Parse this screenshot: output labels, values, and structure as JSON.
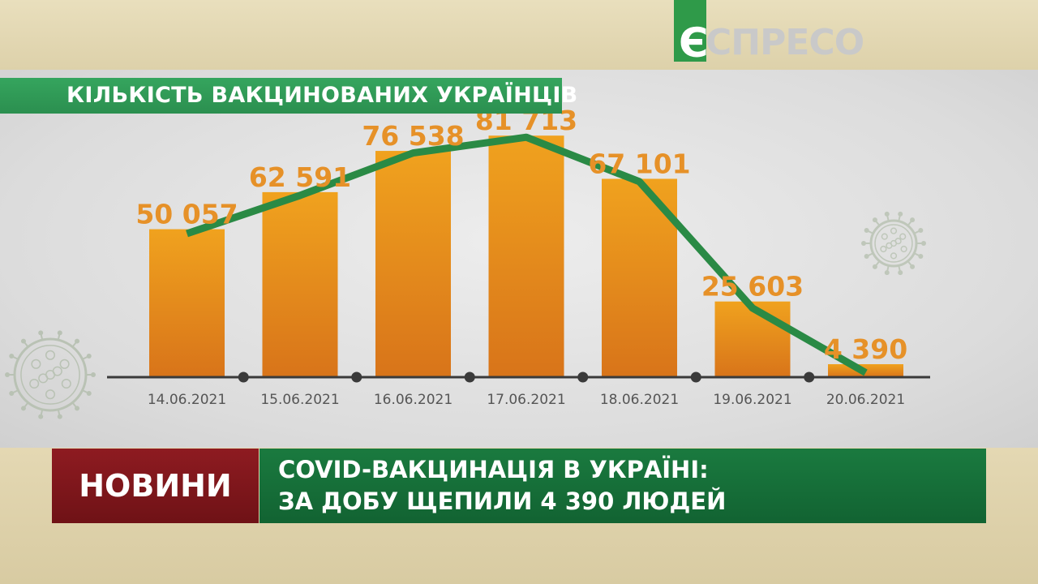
{
  "brand": {
    "logo_letter": "Є",
    "logo_rest": "СПРЕСО"
  },
  "chart_data": {
    "type": "bar",
    "title": "КІЛЬКІСТЬ ВАКЦИНОВАНИХ УКРАЇНЦІВ",
    "categories": [
      "14.06.2021",
      "15.06.2021",
      "16.06.2021",
      "17.06.2021",
      "18.06.2021",
      "19.06.2021",
      "20.06.2021"
    ],
    "values": [
      50057,
      62591,
      76538,
      81713,
      67101,
      25603,
      4390
    ],
    "value_labels": [
      "50 057",
      "62 591",
      "76 538",
      "81 713",
      "67 101",
      "25 603",
      "4 390"
    ],
    "trend_line": true,
    "ylim": [
      0,
      90000
    ],
    "grid": false,
    "colors": {
      "bar_top": "#f0a21e",
      "bar_bottom": "#d8741a",
      "line": "#2a8a45",
      "label": "#e69128"
    }
  },
  "lower_third": {
    "label": "НОВИНИ",
    "headline_line1": "COVID-ВАКЦИНАЦІЯ В УКРАЇНІ:",
    "headline_line2": "ЗА ДОБУ ЩЕПИЛИ 4 390 ЛЮДЕЙ"
  }
}
